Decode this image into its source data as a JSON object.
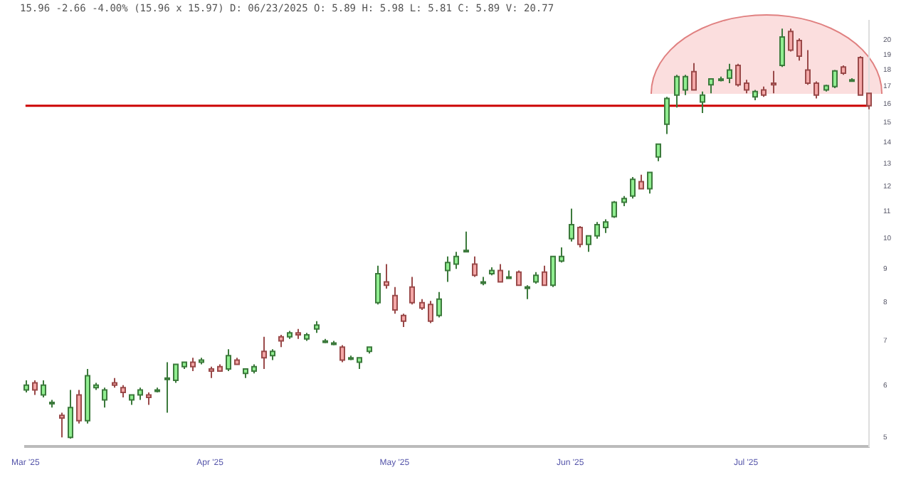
{
  "chart_data": {
    "type": "candlestick",
    "subtitle": "15.96 -2.66 -4.00% (15.96 x 15.97) D: 06/23/2025 O: 5.89 H: 5.98 L: 5.81 C: 5.89 V: 20.77",
    "categories": [
      "Mar '25",
      null,
      null,
      null,
      null,
      null,
      null,
      null,
      null,
      null,
      null,
      null,
      null,
      null,
      null,
      null,
      null,
      null,
      null,
      null,
      null,
      "Apr '25",
      null,
      null,
      null,
      null,
      null,
      null,
      null,
      null,
      null,
      null,
      null,
      null,
      null,
      null,
      null,
      null,
      null,
      null,
      null,
      null,
      "May '25",
      null,
      null,
      null,
      null,
      null,
      null,
      null,
      null,
      null,
      null,
      null,
      null,
      null,
      null,
      null,
      null,
      null,
      null,
      null,
      "Jun '25",
      null,
      null,
      null,
      null,
      null,
      null,
      null,
      null,
      null,
      null,
      null,
      null,
      null,
      null,
      null,
      null,
      null,
      null,
      null,
      "Jul '25",
      null,
      null,
      null,
      null,
      null,
      null,
      null,
      null,
      null,
      null,
      null,
      null,
      null,
      null
    ],
    "ohlc": [
      [
        5.9,
        6.1,
        5.85,
        6.0
      ],
      [
        6.05,
        6.1,
        5.8,
        5.9
      ],
      [
        5.8,
        6.1,
        5.75,
        6.0
      ],
      [
        5.65,
        5.7,
        5.55,
        5.65
      ],
      [
        5.4,
        5.45,
        5.0,
        5.35
      ],
      [
        5.0,
        5.9,
        4.98,
        5.55
      ],
      [
        5.8,
        5.9,
        5.25,
        5.3
      ],
      [
        5.3,
        6.35,
        5.25,
        6.2
      ],
      [
        5.95,
        6.05,
        5.9,
        6.0
      ],
      [
        5.7,
        5.95,
        5.55,
        5.9
      ],
      [
        6.05,
        6.15,
        5.95,
        6.0
      ],
      [
        5.95,
        6.0,
        5.75,
        5.85
      ],
      [
        5.7,
        5.8,
        5.6,
        5.8
      ],
      [
        5.8,
        5.95,
        5.7,
        5.9
      ],
      [
        5.8,
        5.85,
        5.6,
        5.75
      ],
      [
        5.9,
        5.95,
        5.85,
        5.9
      ],
      [
        6.15,
        6.5,
        5.45,
        6.15
      ],
      [
        6.1,
        6.45,
        6.05,
        6.45
      ],
      [
        6.4,
        6.5,
        6.35,
        6.5
      ],
      [
        6.5,
        6.6,
        6.3,
        6.4
      ],
      [
        6.5,
        6.6,
        6.45,
        6.55
      ],
      [
        6.35,
        6.4,
        6.15,
        6.3
      ],
      [
        6.4,
        6.45,
        6.3,
        6.3
      ],
      [
        6.35,
        6.8,
        6.3,
        6.65
      ],
      [
        6.55,
        6.6,
        6.45,
        6.45
      ],
      [
        6.25,
        6.35,
        6.15,
        6.35
      ],
      [
        6.3,
        6.45,
        6.25,
        6.4
      ],
      [
        6.75,
        7.1,
        6.35,
        6.6
      ],
      [
        6.65,
        6.8,
        6.55,
        6.75
      ],
      [
        7.1,
        7.15,
        6.85,
        7.0
      ],
      [
        7.1,
        7.25,
        7.05,
        7.2
      ],
      [
        7.2,
        7.3,
        7.05,
        7.15
      ],
      [
        7.05,
        7.2,
        7.0,
        7.15
      ],
      [
        7.3,
        7.5,
        7.2,
        7.4
      ],
      [
        7.0,
        7.05,
        6.95,
        7.0
      ],
      [
        6.95,
        7.0,
        6.9,
        6.95
      ],
      [
        6.85,
        6.9,
        6.5,
        6.55
      ],
      [
        6.6,
        6.65,
        6.55,
        6.6
      ],
      [
        6.5,
        6.6,
        6.35,
        6.6
      ],
      [
        6.75,
        6.85,
        6.7,
        6.85
      ],
      [
        8.0,
        9.1,
        7.95,
        8.85
      ],
      [
        8.6,
        9.15,
        8.4,
        8.5
      ],
      [
        8.2,
        8.45,
        7.7,
        7.8
      ],
      [
        7.65,
        7.7,
        7.35,
        7.5
      ],
      [
        8.45,
        8.75,
        7.95,
        8.0
      ],
      [
        8.0,
        8.1,
        7.8,
        7.85
      ],
      [
        7.95,
        8.05,
        7.45,
        7.5
      ],
      [
        7.65,
        8.3,
        7.6,
        8.1
      ],
      [
        8.95,
        9.4,
        8.6,
        9.2
      ],
      [
        9.15,
        9.55,
        9.0,
        9.4
      ],
      [
        9.6,
        10.25,
        9.55,
        9.6
      ],
      [
        9.15,
        9.4,
        8.75,
        8.8
      ],
      [
        8.6,
        8.75,
        8.5,
        8.6
      ],
      [
        8.85,
        9.05,
        8.8,
        8.95
      ],
      [
        8.95,
        9.15,
        8.6,
        8.6
      ],
      [
        8.75,
        8.95,
        8.7,
        8.75
      ],
      [
        8.9,
        8.95,
        8.5,
        8.5
      ],
      [
        8.45,
        8.5,
        8.1,
        8.45
      ],
      [
        8.6,
        8.9,
        8.55,
        8.8
      ],
      [
        8.9,
        9.1,
        8.5,
        8.5
      ],
      [
        8.5,
        9.4,
        8.45,
        9.4
      ],
      [
        9.25,
        9.7,
        9.2,
        9.4
      ],
      [
        10.0,
        11.1,
        9.9,
        10.5
      ],
      [
        10.4,
        10.45,
        9.7,
        9.8
      ],
      [
        9.8,
        10.1,
        9.55,
        10.1
      ],
      [
        10.1,
        10.6,
        10.0,
        10.5
      ],
      [
        10.4,
        10.7,
        10.2,
        10.6
      ],
      [
        10.8,
        11.4,
        10.75,
        11.35
      ],
      [
        11.35,
        11.6,
        11.2,
        11.5
      ],
      [
        11.6,
        12.4,
        11.5,
        12.3
      ],
      [
        12.2,
        12.5,
        11.9,
        11.9
      ],
      [
        11.9,
        12.6,
        11.7,
        12.6
      ],
      [
        13.3,
        13.9,
        13.1,
        13.9
      ],
      [
        14.9,
        16.4,
        14.4,
        16.3
      ],
      [
        16.5,
        17.7,
        15.8,
        17.6
      ],
      [
        16.8,
        17.7,
        16.5,
        17.6
      ],
      [
        17.9,
        18.45,
        16.8,
        16.8
      ],
      [
        16.1,
        16.7,
        15.5,
        16.5
      ],
      [
        17.1,
        17.5,
        16.6,
        17.45
      ],
      [
        17.45,
        17.6,
        17.3,
        17.45
      ],
      [
        17.5,
        18.4,
        17.2,
        18.0
      ],
      [
        18.3,
        18.4,
        17.0,
        17.1
      ],
      [
        17.2,
        17.4,
        16.6,
        16.8
      ],
      [
        16.4,
        16.8,
        16.2,
        16.7
      ],
      [
        16.8,
        17.0,
        16.4,
        16.5
      ],
      [
        17.2,
        17.95,
        16.6,
        17.1
      ],
      [
        18.3,
        20.8,
        18.2,
        20.2
      ],
      [
        20.6,
        20.8,
        19.2,
        19.3
      ],
      [
        19.95,
        20.1,
        18.6,
        18.9
      ],
      [
        18.0,
        19.3,
        17.1,
        17.2
      ],
      [
        17.2,
        17.3,
        16.3,
        16.5
      ],
      [
        16.8,
        17.1,
        16.7,
        17.05
      ],
      [
        17.0,
        18.0,
        16.9,
        17.95
      ],
      [
        18.2,
        18.3,
        17.7,
        17.8
      ],
      [
        17.4,
        17.5,
        17.35,
        17.4
      ],
      [
        18.8,
        18.9,
        16.5,
        16.5
      ],
      [
        16.6,
        16.6,
        15.7,
        15.9
      ]
    ],
    "ylim": [
      4.85,
      21.4
    ],
    "yticks": [
      5,
      6,
      7,
      8,
      9,
      10,
      11,
      12,
      13,
      14,
      15,
      16,
      17,
      18,
      19,
      20
    ],
    "log": true,
    "grid": false,
    "legend": false,
    "ref_lines": [
      {
        "axis": "y",
        "value": 15.9,
        "color": "#cc0000"
      }
    ]
  }
}
